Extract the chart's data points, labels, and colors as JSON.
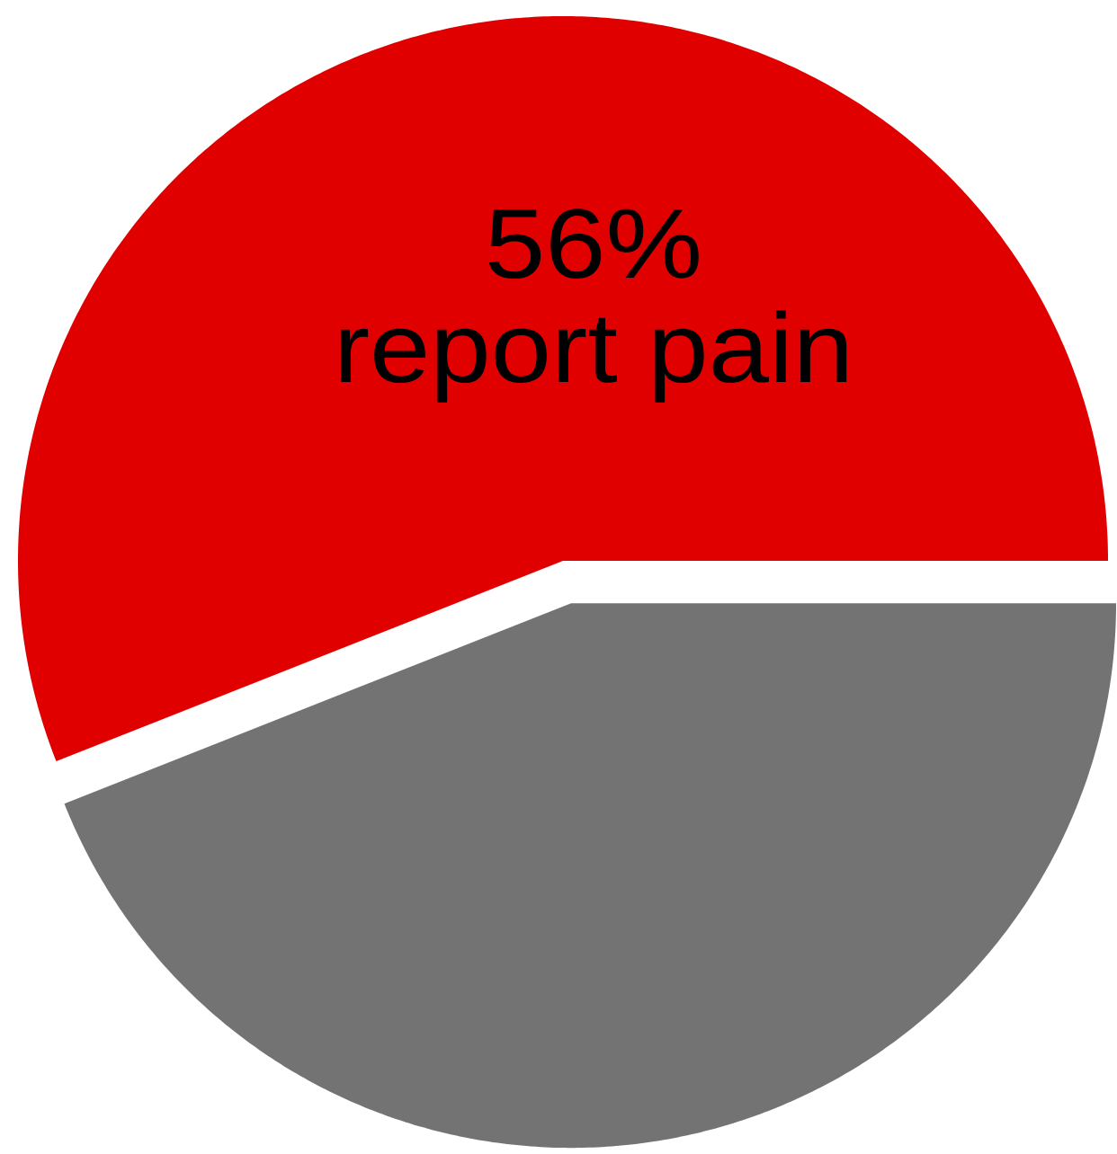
{
  "chart_data": {
    "type": "pie",
    "categories": [
      "report pain",
      null
    ],
    "values": [
      56,
      44
    ],
    "colors": [
      "#e00000",
      "#737373"
    ],
    "value_labels": [
      "56%",
      null
    ]
  }
}
